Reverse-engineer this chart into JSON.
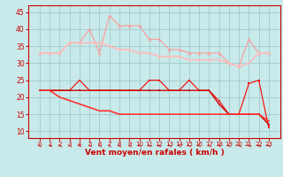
{
  "x": [
    0,
    1,
    2,
    3,
    4,
    5,
    6,
    7,
    8,
    9,
    10,
    11,
    12,
    13,
    14,
    15,
    16,
    17,
    18,
    19,
    20,
    21,
    22,
    23
  ],
  "line1": [
    33,
    33,
    33,
    36,
    36,
    40,
    33,
    44,
    41,
    41,
    41,
    37,
    37,
    34,
    34,
    33,
    33,
    33,
    33,
    30,
    29,
    37,
    33,
    33
  ],
  "line2": [
    33,
    33,
    33,
    36,
    36,
    36,
    36,
    35,
    34,
    34,
    33,
    33,
    32,
    32,
    32,
    31,
    31,
    31,
    31,
    30,
    29,
    30,
    33,
    33
  ],
  "line3": [
    22,
    22,
    22,
    22,
    25,
    22,
    22,
    22,
    22,
    22,
    22,
    25,
    25,
    22,
    22,
    25,
    22,
    22,
    19,
    15,
    15,
    24,
    25,
    11
  ],
  "line4": [
    22,
    22,
    22,
    22,
    22,
    22,
    22,
    22,
    22,
    22,
    22,
    22,
    22,
    22,
    22,
    22,
    22,
    22,
    18,
    15,
    15,
    15,
    15,
    12
  ],
  "line5": [
    22,
    22,
    20,
    19,
    18,
    17,
    16,
    16,
    15,
    15,
    15,
    15,
    15,
    15,
    15,
    15,
    15,
    15,
    15,
    15,
    15,
    15,
    15,
    13
  ],
  "bg_color": "#c8eaea",
  "grid_color": "#a0cccc",
  "line1_color": "#ff9999",
  "line2_color": "#ffbbbb",
  "line3_color": "#ff0000",
  "line4_color": "#cc0000",
  "line5_color": "#ff3333",
  "axis_color": "#cc0000",
  "xlabel": "Vent moyen/en rafales ( km/h )",
  "ylim": [
    8,
    47
  ],
  "yticks": [
    10,
    15,
    20,
    25,
    30,
    35,
    40,
    45
  ]
}
